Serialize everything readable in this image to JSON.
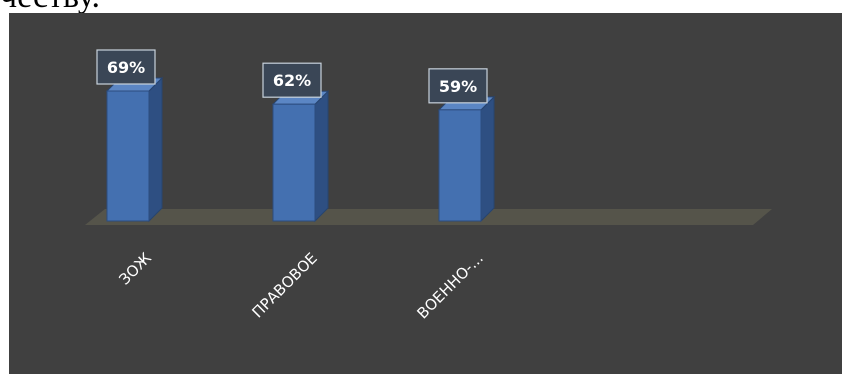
{
  "header": {
    "partial_text": "честву."
  },
  "chart_data": {
    "type": "bar",
    "categories": [
      "ЗОЖ",
      "ПРАВОВОЕ",
      "ВОЕННО-..."
    ],
    "values": [
      69,
      62,
      59
    ],
    "data_labels": [
      "69%",
      "62%",
      "59%"
    ],
    "ylim": [
      0,
      80
    ],
    "grid": false,
    "legend": "none",
    "colors": {
      "background": "#404040",
      "bar_front": "#4470b0",
      "bar_side": "#2e4f82",
      "bar_top": "#5b86c4",
      "floor": "#55544a",
      "label_box": "#3a4656",
      "label_border": "#c8d2dc"
    }
  }
}
